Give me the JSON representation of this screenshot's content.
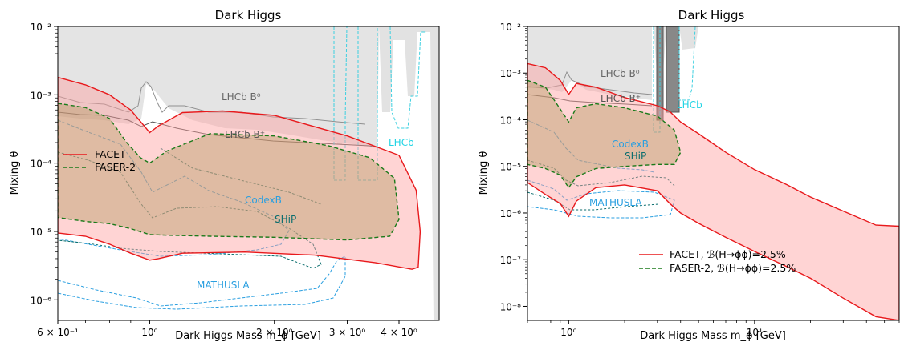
{
  "chart_data": [
    {
      "type": "line",
      "title": "Dark Higgs",
      "xlabel": "Dark Higgs Mass m_ϕ [GeV]",
      "ylabel": "Mixing θ",
      "xscale": "log",
      "yscale": "log",
      "xlim": [
        0.6,
        5.0
      ],
      "ylim": [
        5e-07,
        0.01
      ],
      "xticks": [
        "6 × 10⁻¹",
        "10⁰",
        "2 × 10⁰",
        "3 × 10⁰",
        "4 × 10⁰"
      ],
      "yticks": [
        "10⁻²",
        "10⁻³",
        "10⁻⁴",
        "10⁻⁵",
        "10⁻⁶"
      ],
      "legend": {
        "position": "center-left",
        "entries": [
          "FACET",
          "FASER-2"
        ]
      },
      "annotations": [
        "LHCb B⁰",
        "LHCb B⁺",
        "LHCb",
        "CodexB",
        "SHiP",
        "MATHUSLA"
      ],
      "series": [
        {
          "name": "FACET",
          "x": [
            0.6,
            0.7,
            0.8,
            0.9,
            0.97,
            1.0,
            1.05,
            1.2,
            1.5,
            2.0,
            3.0,
            4.0,
            4.4,
            4.5,
            4.45,
            4.3,
            3.5,
            2.5,
            1.7,
            1.2,
            1.05,
            1.0,
            0.9,
            0.8,
            0.7,
            0.6
          ],
          "y": [
            0.0018,
            0.0014,
            0.001,
            0.0006,
            0.00035,
            0.00028,
            0.00035,
            0.00055,
            0.00058,
            0.0005,
            0.00025,
            0.00013,
            4e-05,
            1e-05,
            3e-06,
            2.8e-06,
            3.5e-06,
            4.5e-06,
            5e-06,
            4.8e-06,
            4e-06,
            3.8e-06,
            4.8e-06,
            6.5e-06,
            8.5e-06,
            9.5e-06
          ]
        },
        {
          "name": "FASER-2",
          "x": [
            0.6,
            0.7,
            0.8,
            0.88,
            0.95,
            1.0,
            1.1,
            1.4,
            2.0,
            2.7,
            3.4,
            3.9,
            4.0,
            3.8,
            3.0,
            2.0,
            1.4,
            1.1,
            1.0,
            0.9,
            0.8,
            0.7,
            0.6
          ],
          "y": [
            0.00075,
            0.00065,
            0.00045,
            0.0002,
            0.00012,
            0.0001,
            0.00015,
            0.00027,
            0.00025,
            0.00018,
            0.00012,
            6e-05,
            1.5e-05,
            8.5e-06,
            7.5e-06,
            8.2e-06,
            8.5e-06,
            8.8e-06,
            9e-06,
            1.1e-05,
            1.3e-05,
            1.4e-05,
            1.6e-05
          ]
        }
      ]
    },
    {
      "type": "line",
      "title": "Dark Higgs",
      "xlabel": "Dark Higgs Mass m_ϕ [GeV]",
      "ylabel": "Mixing θ",
      "xscale": "log",
      "yscale": "log",
      "xlim": [
        0.6,
        60
      ],
      "ylim": [
        5e-09,
        0.01
      ],
      "xticks": [
        "10⁰",
        "10¹"
      ],
      "yticks": [
        "10⁻²",
        "10⁻³",
        "10⁻⁴",
        "10⁻⁵",
        "10⁻⁶",
        "10⁻⁷",
        "10⁻⁸"
      ],
      "legend": {
        "position": "lower-right",
        "entries": [
          "FACET, ℬ(H→ϕϕ)=2.5%",
          "FASER-2, ℬ(H→ϕϕ)=2.5%"
        ]
      },
      "annotations": [
        "LHCb B⁰",
        "LHCb B⁺",
        "LHCb",
        "CodexB",
        "SHiP",
        "MATHUSLA"
      ],
      "series": [
        {
          "name": "FACET, ℬ(H→ϕϕ)=2.5%",
          "x": [
            0.6,
            0.75,
            0.9,
            1.0,
            1.1,
            1.4,
            2.0,
            3.0,
            3.5,
            4.0,
            5.0,
            7.0,
            10,
            15,
            20,
            30,
            45,
            60,
            60,
            45,
            30,
            20,
            15,
            10,
            7,
            5,
            4.0,
            3.5,
            3.0,
            2.0,
            1.4,
            1.1,
            1.0,
            0.9,
            0.75,
            0.6
          ],
          "y": [
            0.0016,
            0.0013,
            0.0007,
            0.00035,
            0.0006,
            0.0005,
            0.0003,
            0.0002,
            0.00015,
            9e-05,
            5e-05,
            2e-05,
            8.5e-06,
            4e-06,
            2.2e-06,
            1.1e-06,
            5.5e-07,
            5.2e-07,
            5e-09,
            6e-09,
            1.5e-08,
            4e-08,
            7e-08,
            1.5e-07,
            3e-07,
            6e-07,
            1e-06,
            1.6e-06,
            3e-06,
            4e-06,
            3.5e-06,
            1.8e-06,
            8.5e-07,
            1.6e-06,
            2.5e-06,
            4.5e-06
          ]
        },
        {
          "name": "FASER-2, ℬ(H→ϕϕ)=2.5%",
          "x": [
            0.6,
            0.75,
            0.9,
            1.0,
            1.1,
            1.4,
            2.0,
            3.0,
            3.7,
            4.0,
            3.7,
            3.0,
            2.0,
            1.4,
            1.1,
            1.0,
            0.9,
            0.75,
            0.6
          ],
          "y": [
            0.0007,
            0.0005,
            0.00017,
            9e-05,
            0.00018,
            0.00022,
            0.00018,
            0.00012,
            6e-05,
            2e-05,
            1.1e-05,
            1.1e-05,
            1e-05,
            9e-06,
            6e-06,
            3.5e-06,
            6.5e-06,
            9e-06,
            1.1e-05
          ]
        }
      ]
    }
  ]
}
